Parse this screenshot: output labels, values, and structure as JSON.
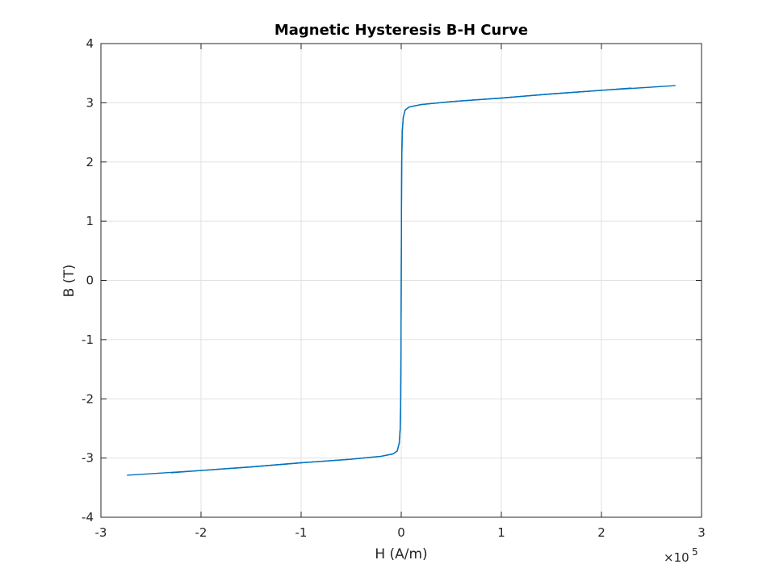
{
  "chart_data": {
    "type": "line",
    "title": "Magnetic Hysteresis B-H Curve",
    "xlabel": "H (A/m)",
    "ylabel": "B (T)",
    "x_exponent_label": "×10",
    "x_exponent_power": "5",
    "xlim": [
      -300000,
      300000
    ],
    "ylim": [
      -4,
      4
    ],
    "x_ticks": [
      -300000,
      -200000,
      -100000,
      0,
      100000,
      200000,
      300000
    ],
    "x_tick_labels": [
      "-3",
      "-2",
      "-1",
      "0",
      "1",
      "2",
      "3"
    ],
    "y_ticks": [
      -4,
      -3,
      -2,
      -1,
      0,
      1,
      2,
      3,
      4
    ],
    "y_tick_labels": [
      "-4",
      "-3",
      "-2",
      "-1",
      "0",
      "1",
      "2",
      "3",
      "4"
    ],
    "grid": true,
    "series": [
      {
        "color": "#0072BD",
        "x": [
          -230000,
          -200000,
          -150000,
          -100000,
          -50000,
          -20000,
          -8000,
          -4000,
          -2000,
          -1000,
          -500,
          -200,
          0,
          200,
          500,
          1000,
          2000,
          4000,
          8000,
          20000,
          50000,
          100000,
          150000,
          200000,
          274000
        ],
        "y": [
          -3.25,
          -3.21,
          -3.15,
          -3.08,
          -3.02,
          -2.97,
          -2.93,
          -2.88,
          -2.75,
          -2.5,
          -2.0,
          -1.0,
          0.0,
          1.0,
          2.0,
          2.5,
          2.75,
          2.88,
          2.93,
          2.97,
          3.02,
          3.08,
          3.15,
          3.21,
          3.29
        ]
      },
      {
        "color": "#0072BD",
        "x": [
          -274000,
          -200000,
          -150000,
          -100000,
          -50000,
          -20000,
          -8000,
          -4000,
          -2000,
          -1000,
          -500,
          -200,
          0,
          200,
          500,
          1000,
          2000,
          4000,
          8000,
          20000,
          50000,
          100000,
          150000,
          200000,
          230000
        ],
        "y": [
          -3.29,
          -3.21,
          -3.15,
          -3.08,
          -3.02,
          -2.97,
          -2.93,
          -2.88,
          -2.75,
          -2.5,
          -2.0,
          -1.0,
          0.0,
          1.0,
          2.0,
          2.5,
          2.75,
          2.88,
          2.93,
          2.97,
          3.02,
          3.08,
          3.15,
          3.21,
          3.25
        ]
      }
    ]
  }
}
